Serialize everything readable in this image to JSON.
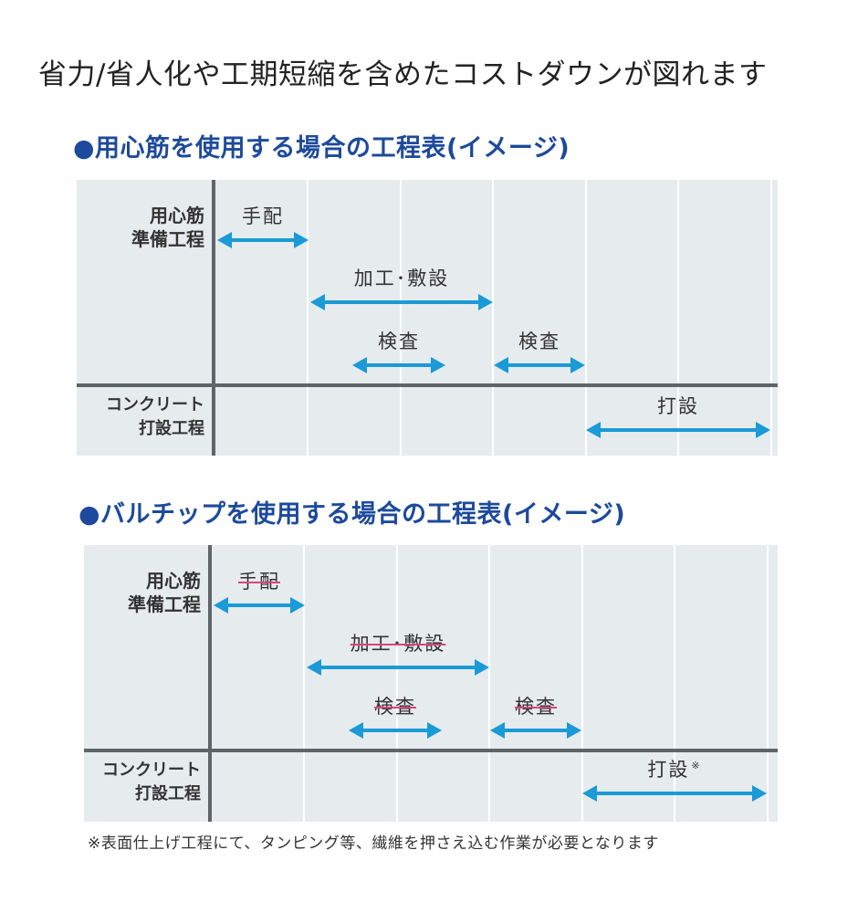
{
  "headline": "省力/省人化や工期短縮を含めたコストダウンが図れます",
  "arrow_color": "#1a9ad6",
  "strike_color": "#d8457a",
  "charts": [
    {
      "title": "●用心筋を使用する場合の工程表(イメージ)",
      "rows": [
        {
          "label_line1": "用心筋",
          "label_line2": "準備工程"
        },
        {
          "label_line1": "コンクリート",
          "label_line2": "打設工程"
        }
      ],
      "tasks": [
        {
          "label": "手配",
          "struck": false
        },
        {
          "label": "加工･敷設",
          "struck": false
        },
        {
          "label": "検査",
          "struck": false
        },
        {
          "label": "検査",
          "struck": false
        },
        {
          "label": "打設",
          "struck": false
        }
      ]
    },
    {
      "title": "●バルチップを使用する場合の工程表(イメージ)",
      "rows": [
        {
          "label_line1": "用心筋",
          "label_line2": "準備工程"
        },
        {
          "label_line1": "コンクリート",
          "label_line2": "打設工程"
        }
      ],
      "tasks": [
        {
          "label": "手配",
          "struck": true
        },
        {
          "label": "加工･敷設",
          "struck": true
        },
        {
          "label": "検査",
          "struck": true
        },
        {
          "label": "検査",
          "struck": true
        },
        {
          "label": "打設",
          "struck": false,
          "mark": "※"
        }
      ]
    }
  ],
  "footnote": "※表面仕上げ工程にて、タンピング等、繊維を押さえ込む作業が必要となります"
}
